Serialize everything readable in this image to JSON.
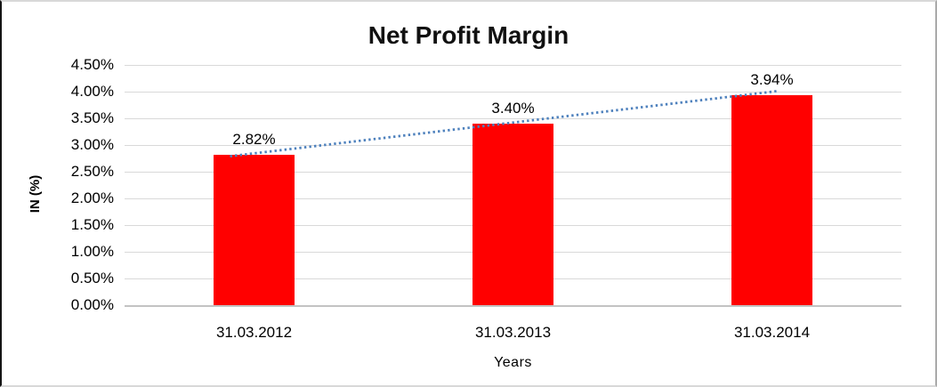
{
  "chart_data": {
    "type": "bar",
    "title": "Net Profit Margin",
    "xlabel": "Years",
    "ylabel": "IN (%)",
    "categories": [
      "31.03.2012",
      "31.03.2013",
      "31.03.2014"
    ],
    "values": [
      2.82,
      3.4,
      3.94
    ],
    "data_labels": [
      "2.82%",
      "3.40%",
      "3.94%"
    ],
    "ylim": [
      0,
      4.5
    ],
    "ytick_step": 0.5,
    "ytick_labels": [
      "0.00%",
      "0.50%",
      "1.00%",
      "1.50%",
      "2.00%",
      "2.50%",
      "3.00%",
      "3.50%",
      "4.00%",
      "4.50%"
    ],
    "grid": true,
    "legend": "none",
    "bar_color": "#FF0000",
    "trendline": {
      "type": "linear",
      "style": "dotted",
      "color": "#4E81BD",
      "start_value": 2.79,
      "end_value": 4.01
    }
  }
}
